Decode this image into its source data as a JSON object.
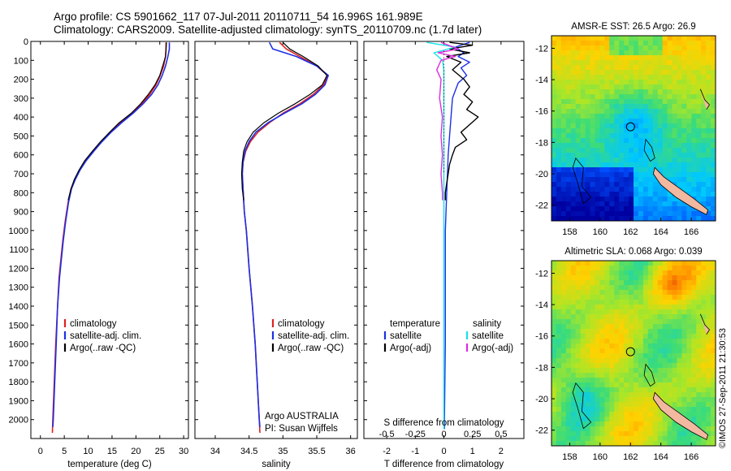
{
  "header": {
    "line1": "Argo profile: CS 5901662_117 07-Jul-2011 20110711_54 16.996S 161.989E",
    "line2": "Climatology: CARS2009. Satellite-adjusted climatology: synTS_20110709.nc (1.7d later)"
  },
  "credit": "©IMOS 27-Sep-2011 21:30:53",
  "colors": {
    "climatology": "#e02020",
    "satellite": "#1c2fe6",
    "argo": "#000000",
    "sal_satellite": "#19e0e8",
    "sal_argo": "#e02ce0",
    "land": "#f2b8a0"
  },
  "depth_axis": {
    "ylim": [
      0,
      2100
    ],
    "ticks": [
      0,
      100,
      200,
      300,
      400,
      500,
      600,
      700,
      800,
      900,
      1000,
      1100,
      1200,
      1300,
      1400,
      1500,
      1600,
      1700,
      1800,
      1900,
      2000
    ]
  },
  "chart_data": [
    {
      "type": "line",
      "id": "temperature",
      "xlabel": "temperature (deg C)",
      "xlim": [
        -2,
        31
      ],
      "xticks": [
        0,
        5,
        10,
        15,
        20,
        25,
        30
      ],
      "legend": [
        "climatology",
        "satellite-adj. clim.",
        "Argo(..raw -QC)"
      ],
      "series": [
        {
          "name": "climatology",
          "color": "#e02020",
          "width": 1.6,
          "points": [
            [
              26.3,
              5
            ],
            [
              26.3,
              40
            ],
            [
              26.2,
              80
            ],
            [
              25.8,
              130
            ],
            [
              25.1,
              180
            ],
            [
              24.2,
              230
            ],
            [
              22.9,
              280
            ],
            [
              21.2,
              330
            ],
            [
              19.1,
              380
            ],
            [
              16.7,
              430
            ],
            [
              14.6,
              480
            ],
            [
              12.8,
              530
            ],
            [
              11.0,
              580
            ],
            [
              9.4,
              630
            ],
            [
              8.2,
              680
            ],
            [
              7.2,
              730
            ],
            [
              6.4,
              780
            ],
            [
              5.8,
              850
            ],
            [
              5.2,
              950
            ],
            [
              4.7,
              1050
            ],
            [
              4.3,
              1150
            ],
            [
              3.9,
              1250
            ],
            [
              3.6,
              1400
            ],
            [
              3.2,
              1600
            ],
            [
              2.9,
              1800
            ],
            [
              2.6,
              2000
            ],
            [
              2.5,
              2070
            ]
          ]
        },
        {
          "name": "satellite-adj. clim.",
          "color": "#1c2fe6",
          "width": 1.6,
          "points": [
            [
              27.0,
              5
            ],
            [
              27.0,
              40
            ],
            [
              26.7,
              80
            ],
            [
              26.2,
              130
            ],
            [
              25.5,
              180
            ],
            [
              24.6,
              230
            ],
            [
              23.3,
              280
            ],
            [
              21.5,
              330
            ],
            [
              19.4,
              380
            ],
            [
              17.0,
              430
            ],
            [
              14.8,
              480
            ],
            [
              12.9,
              530
            ],
            [
              11.2,
              580
            ],
            [
              9.6,
              630
            ],
            [
              8.3,
              680
            ],
            [
              7.3,
              730
            ],
            [
              6.5,
              780
            ],
            [
              5.9,
              850
            ],
            [
              5.3,
              950
            ],
            [
              4.8,
              1050
            ],
            [
              4.4,
              1150
            ],
            [
              4.0,
              1250
            ],
            [
              3.6,
              1400
            ],
            [
              3.3,
              1600
            ],
            [
              3.0,
              1800
            ],
            [
              2.7,
              2000
            ],
            [
              2.6,
              2040
            ]
          ]
        },
        {
          "name": "Argo(..raw -QC)",
          "color": "#000000",
          "width": 1.2,
          "points": [
            [
              26.4,
              5
            ],
            [
              26.3,
              40
            ],
            [
              26.2,
              80
            ],
            [
              25.6,
              130
            ],
            [
              25.0,
              180
            ],
            [
              24.0,
              230
            ],
            [
              22.6,
              280
            ],
            [
              21.0,
              330
            ],
            [
              19.0,
              380
            ],
            [
              16.5,
              430
            ],
            [
              14.5,
              480
            ],
            [
              12.6,
              530
            ],
            [
              10.9,
              580
            ],
            [
              9.3,
              630
            ],
            [
              8.1,
              680
            ],
            [
              7.1,
              730
            ],
            [
              6.4,
              780
            ],
            [
              5.8,
              840
            ]
          ]
        }
      ]
    },
    {
      "type": "line",
      "id": "salinity",
      "xlabel": "salinity",
      "xlim": [
        33.7,
        36.1
      ],
      "xticks": [
        34,
        34.5,
        35,
        35.5,
        36
      ],
      "legend": [
        "climatology",
        "satellite-adj. clim.",
        "Argo(..raw -QC)"
      ],
      "note": [
        "Argo AUSTRALIA",
        "PI: Susan Wijffels"
      ],
      "series": [
        {
          "name": "climatology",
          "color": "#e02020",
          "width": 1.6,
          "points": [
            [
              34.95,
              5
            ],
            [
              35.05,
              40
            ],
            [
              35.25,
              80
            ],
            [
              35.5,
              130
            ],
            [
              35.66,
              180
            ],
            [
              35.6,
              230
            ],
            [
              35.45,
              280
            ],
            [
              35.25,
              330
            ],
            [
              35.0,
              380
            ],
            [
              34.8,
              430
            ],
            [
              34.63,
              480
            ],
            [
              34.52,
              530
            ],
            [
              34.45,
              580
            ],
            [
              34.41,
              640
            ],
            [
              34.4,
              700
            ],
            [
              34.41,
              780
            ],
            [
              34.43,
              900
            ],
            [
              34.46,
              1000
            ],
            [
              34.5,
              1200
            ],
            [
              34.55,
              1400
            ],
            [
              34.59,
              1600
            ],
            [
              34.62,
              1800
            ],
            [
              34.65,
              2000
            ],
            [
              34.66,
              2070
            ]
          ]
        },
        {
          "name": "satellite-adj. clim.",
          "color": "#1c2fe6",
          "width": 1.6,
          "points": [
            [
              34.8,
              5
            ],
            [
              34.85,
              40
            ],
            [
              35.2,
              80
            ],
            [
              35.5,
              130
            ],
            [
              35.67,
              180
            ],
            [
              35.62,
              230
            ],
            [
              35.48,
              280
            ],
            [
              35.28,
              330
            ],
            [
              35.02,
              380
            ],
            [
              34.78,
              430
            ],
            [
              34.6,
              480
            ],
            [
              34.5,
              530
            ],
            [
              34.44,
              580
            ],
            [
              34.41,
              640
            ],
            [
              34.4,
              700
            ],
            [
              34.41,
              780
            ],
            [
              34.43,
              900
            ],
            [
              34.46,
              1000
            ],
            [
              34.5,
              1200
            ],
            [
              34.55,
              1400
            ],
            [
              34.59,
              1600
            ],
            [
              34.62,
              1800
            ],
            [
              34.65,
              2000
            ],
            [
              34.66,
              2040
            ]
          ]
        },
        {
          "name": "Argo(..raw -QC)",
          "color": "#000000",
          "width": 1.2,
          "points": [
            [
              35.0,
              5
            ],
            [
              35.1,
              40
            ],
            [
              35.3,
              80
            ],
            [
              35.52,
              130
            ],
            [
              35.65,
              180
            ],
            [
              35.58,
              230
            ],
            [
              35.4,
              280
            ],
            [
              35.18,
              330
            ],
            [
              34.93,
              380
            ],
            [
              34.72,
              430
            ],
            [
              34.56,
              480
            ],
            [
              34.47,
              530
            ],
            [
              34.42,
              580
            ],
            [
              34.4,
              640
            ],
            [
              34.39,
              700
            ],
            [
              34.4,
              780
            ],
            [
              34.42,
              840
            ]
          ]
        }
      ]
    },
    {
      "type": "line",
      "id": "difference",
      "xlabel": "T difference from climatology",
      "xlabel_top": "S difference from climatology",
      "xlim": [
        -2.8,
        2.8
      ],
      "xticks": [
        -2,
        -1,
        0,
        1,
        2
      ],
      "xticklabels": [
        "-2",
        "-1",
        "0",
        "1",
        "2"
      ],
      "s_ticks": [
        -0.5,
        -0.25,
        0,
        0.25,
        0.5
      ],
      "s_ticklabels": [
        "-0.5",
        "-0.25",
        "0",
        "0.25",
        "0.5"
      ],
      "legend_headers": [
        "temperature",
        "salinity"
      ],
      "legend": [
        "satellite",
        "Argo(-adj)",
        "satellite",
        "Argo(-adj)"
      ],
      "series": [
        {
          "name": "temperature satellite",
          "color": "#1c2fe6",
          "width": 1.4,
          "points": [
            [
              0.9,
              5
            ],
            [
              0.4,
              30
            ],
            [
              0.7,
              60
            ],
            [
              0.5,
              80
            ],
            [
              0.9,
              110
            ],
            [
              0.6,
              140
            ],
            [
              0.8,
              180
            ],
            [
              0.5,
              220
            ],
            [
              0.4,
              260
            ],
            [
              0.3,
              300
            ],
            [
              0.25,
              400
            ],
            [
              0.2,
              500
            ],
            [
              0.15,
              600
            ],
            [
              0.1,
              800
            ],
            [
              0.05,
              1000
            ],
            [
              0.05,
              1300
            ],
            [
              0.05,
              1600
            ],
            [
              0.02,
              2000
            ],
            [
              0.02,
              2050
            ]
          ]
        },
        {
          "name": "temperature Argo(-adj)",
          "color": "#000000",
          "width": 1.4,
          "points": [
            [
              0.2,
              5
            ],
            [
              1.0,
              20
            ],
            [
              0.2,
              40
            ],
            [
              0.9,
              60
            ],
            [
              0.1,
              80
            ],
            [
              0.6,
              110
            ],
            [
              0.3,
              150
            ],
            [
              0.7,
              200
            ],
            [
              0.9,
              240
            ],
            [
              0.7,
              280
            ],
            [
              1.0,
              320
            ],
            [
              0.8,
              360
            ],
            [
              1.2,
              400
            ],
            [
              0.9,
              440
            ],
            [
              0.6,
              480
            ],
            [
              0.8,
              520
            ],
            [
              0.4,
              560
            ],
            [
              0.3,
              600
            ],
            [
              0.2,
              650
            ],
            [
              0.15,
              700
            ],
            [
              0.1,
              750
            ],
            [
              0.05,
              800
            ],
            [
              0.05,
              840
            ]
          ]
        },
        {
          "name": "salinity satellite",
          "color": "#19e0e8",
          "width": 1.4,
          "points": [
            [
              -0.6,
              5
            ],
            [
              0.4,
              30
            ],
            [
              -0.35,
              60
            ],
            [
              -0.2,
              80
            ],
            [
              -0.05,
              100
            ],
            [
              0.0,
              150
            ],
            [
              0.0,
              300
            ],
            [
              0.0,
              600
            ],
            [
              0.0,
              1000
            ],
            [
              0.0,
              1500
            ],
            [
              0.0,
              2050
            ]
          ]
        },
        {
          "name": "salinity Argo(-adj)",
          "color": "#e02ce0",
          "width": 1.4,
          "points": [
            [
              -0.1,
              5
            ],
            [
              0.5,
              40
            ],
            [
              -0.2,
              60
            ],
            [
              0.4,
              80
            ],
            [
              -0.1,
              100
            ],
            [
              -0.25,
              150
            ],
            [
              -0.1,
              200
            ],
            [
              -0.15,
              300
            ],
            [
              -0.05,
              400
            ],
            [
              -0.1,
              500
            ],
            [
              -0.05,
              600
            ],
            [
              -0.1,
              700
            ],
            [
              -0.05,
              800
            ],
            [
              -0.05,
              840
            ]
          ]
        }
      ]
    },
    {
      "type": "heatmap",
      "id": "sst_map",
      "title": "AMSR-E SST: 26.5 Argo: 26.9",
      "xticks": [
        158,
        160,
        162,
        164,
        166
      ],
      "yticks": [
        -12,
        -14,
        -16,
        -18,
        -20,
        -22
      ],
      "xlim": [
        156.8,
        167.6
      ],
      "ylim": [
        -23,
        -11.2
      ],
      "marker": [
        162,
        -17.0
      ]
    },
    {
      "type": "heatmap",
      "id": "sla_map",
      "title": "Altimetric SLA: 0.068 Argo: 0.039",
      "xticks": [
        158,
        160,
        162,
        164,
        166
      ],
      "yticks": [
        -12,
        -14,
        -16,
        -18,
        -20,
        -22
      ],
      "xlim": [
        156.8,
        167.6
      ],
      "ylim": [
        -23,
        -11.2
      ],
      "marker": [
        162,
        -17.0
      ]
    }
  ]
}
